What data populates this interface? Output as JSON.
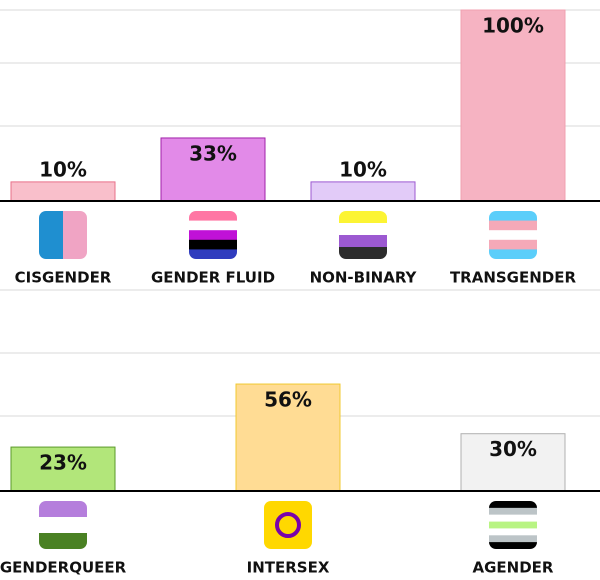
{
  "chart_data": [
    {
      "type": "bar",
      "categories": [
        "CISGENDER",
        "GENDER FLUID",
        "NON-BINARY",
        "TRANSGENDER"
      ],
      "values": [
        10,
        33,
        10,
        100
      ],
      "value_labels": [
        "10%",
        "33%",
        "10%",
        "100%"
      ],
      "colors": [
        "#f9bfcb",
        "#e28ae8",
        "#e2cbf8",
        "#f6b3c2"
      ],
      "edge_colors": [
        "#e8708a",
        "#a020a8",
        "#9c59d1",
        "#f0a0b0"
      ],
      "ylim": [
        0,
        100
      ]
    },
    {
      "type": "bar",
      "categories": [
        "GENDERQUEER",
        "INTERSEX",
        "AGENDER"
      ],
      "values": [
        23,
        56,
        30
      ],
      "value_labels": [
        "23%",
        "56%",
        "30%"
      ],
      "colors": [
        "#b2e67a",
        "#ffdc94",
        "#f2f2f2"
      ],
      "edge_colors": [
        "#5a9a2a",
        "#f0c830",
        "#b0b0b0"
      ],
      "ylim": [
        0,
        100
      ]
    }
  ]
}
